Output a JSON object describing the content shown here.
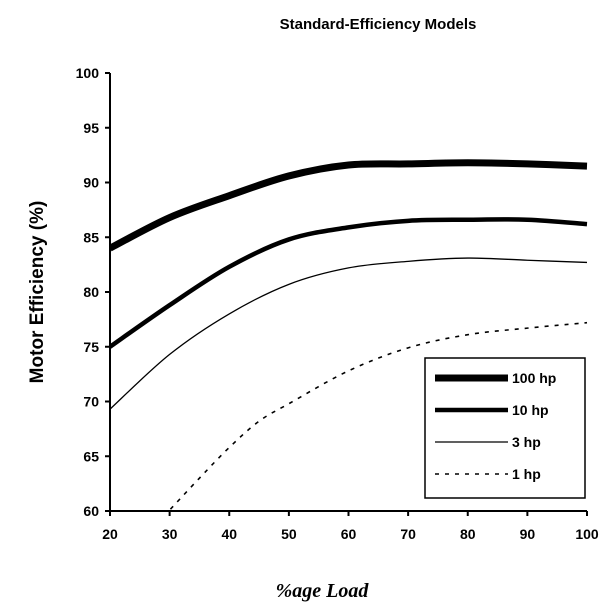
{
  "chart_data": {
    "type": "line",
    "title": "Standard-Efficiency Models",
    "xlabel": "%age Load",
    "ylabel": "Motor Efficiency (%)",
    "xlim": [
      20,
      100
    ],
    "ylim": [
      60,
      100
    ],
    "x_ticks": [
      20,
      30,
      40,
      50,
      60,
      70,
      80,
      90,
      100
    ],
    "y_ticks": [
      60,
      65,
      70,
      75,
      80,
      85,
      90,
      95,
      100
    ],
    "grid": false,
    "legend_position": "bottom-right",
    "series": [
      {
        "name": "100 hp",
        "line_style": "solid",
        "weight": "heavy",
        "x": [
          20,
          30,
          40,
          50,
          60,
          70,
          80,
          90,
          100
        ],
        "y": [
          84,
          86.8,
          88.8,
          90.6,
          91.6,
          91.7,
          91.8,
          91.7,
          91.5
        ]
      },
      {
        "name": "10 hp",
        "line_style": "solid",
        "weight": "medium",
        "x": [
          20,
          30,
          40,
          50,
          60,
          70,
          80,
          90,
          100
        ],
        "y": [
          75,
          78.8,
          82.3,
          84.8,
          85.9,
          86.5,
          86.6,
          86.6,
          86.2
        ]
      },
      {
        "name": "3 hp",
        "line_style": "solid",
        "weight": "thin",
        "x": [
          20,
          30,
          40,
          50,
          60,
          70,
          80,
          90,
          100
        ],
        "y": [
          69.3,
          74.3,
          78,
          80.7,
          82.2,
          82.8,
          83.1,
          82.9,
          82.7
        ]
      },
      {
        "name": "1 hp",
        "line_style": "dashed",
        "weight": "thin",
        "x": [
          29,
          35,
          40,
          45,
          50,
          60,
          70,
          80,
          90,
          100
        ],
        "y": [
          59.5,
          63,
          65.8,
          68.2,
          69.8,
          72.8,
          74.9,
          76.1,
          76.7,
          77.2
        ]
      }
    ]
  }
}
